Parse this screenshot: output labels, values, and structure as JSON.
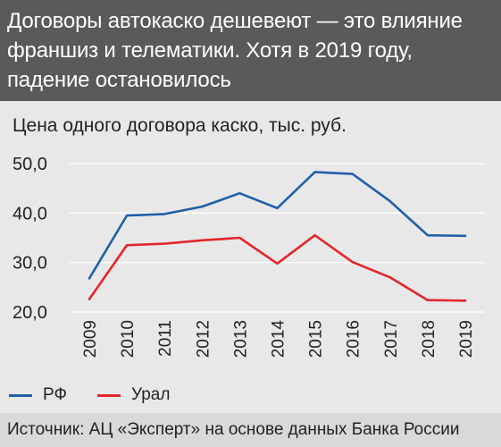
{
  "title_lines": [
    "Договоры автокаско дешевеют — это влияние",
    "франшиз и телематики. Хотя в 2019 году,",
    "падение остановилось"
  ],
  "chart_data": {
    "type": "line",
    "title": "Договоры автокаско дешевеют — это влияние франшиз и телематики. Хотя в 2019 году, падение остановилось",
    "subtitle": "Цена одного договора каско, тыс. руб.",
    "x": [
      "2009",
      "2010",
      "2011",
      "2012",
      "2013",
      "2014",
      "2015",
      "2016",
      "2017",
      "2018",
      "2019"
    ],
    "ylim": [
      20,
      50
    ],
    "yticks": [
      20,
      30,
      40,
      50
    ],
    "ytick_labels": [
      "20,0",
      "30,0",
      "40,0",
      "50,0"
    ],
    "grid": true,
    "legend_position": "bottom-left",
    "series": [
      {
        "name": "РФ",
        "color": "#1f5fa8",
        "values": [
          26.8,
          39.5,
          39.8,
          41.3,
          44.0,
          41.0,
          48.3,
          47.9,
          42.4,
          35.5,
          35.4
        ]
      },
      {
        "name": "Урал",
        "color": "#e3262b",
        "values": [
          22.6,
          33.5,
          33.8,
          34.5,
          35.0,
          29.8,
          35.5,
          30.1,
          27.0,
          22.4,
          22.3
        ]
      }
    ]
  },
  "source": "Источник: АЦ «Эксперт» на основе данных Банка России"
}
